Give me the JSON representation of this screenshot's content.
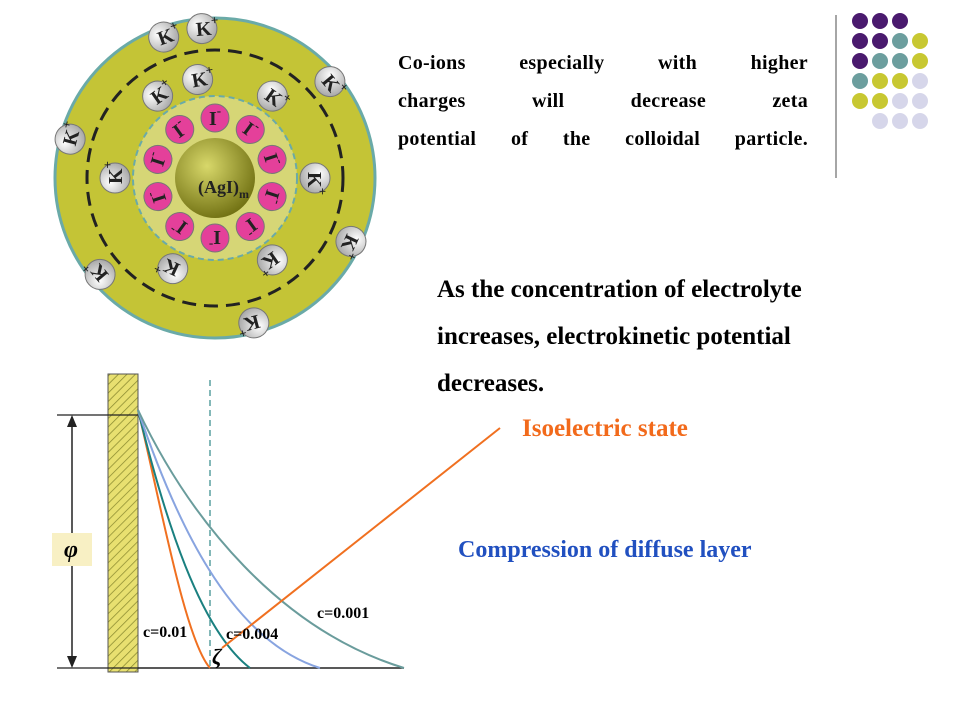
{
  "colloid": {
    "core": {
      "text": "(AgI)",
      "subscript": "m"
    },
    "anion": {
      "symbol": "I",
      "charge": "-"
    },
    "cation": {
      "symbol": "K",
      "charge": "+"
    }
  },
  "note": {
    "lines": [
      "Co-ions especially with higher",
      "charges will decrease zeta",
      "potential of the colloidal particle."
    ]
  },
  "statement": {
    "lines": [
      "As the concentration of electrolyte",
      "increases, electrokinetic potential",
      "decreases."
    ]
  },
  "isoelectric_label": "Isoelectric state",
  "compression_label": "Compression of diffuse layer",
  "graph": {
    "potential_symbol": "φ",
    "zeta_symbol": "ζ",
    "curve_labels": [
      "c=0.01",
      "c=0.004",
      "c=0.001"
    ]
  }
}
